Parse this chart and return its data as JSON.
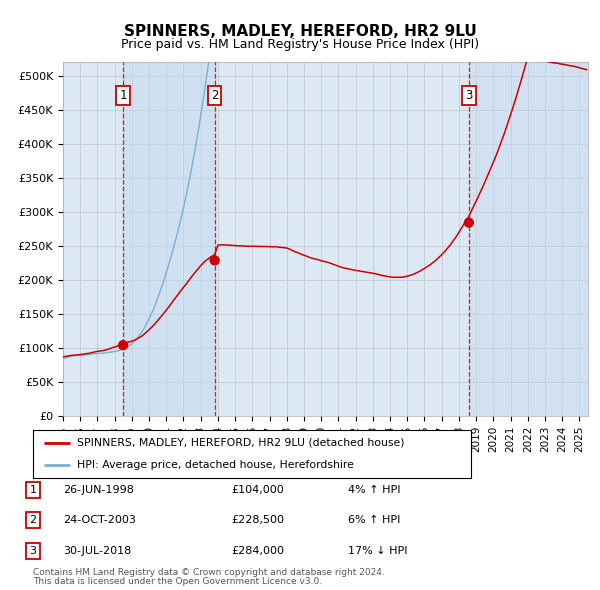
{
  "title": "SPINNERS, MADLEY, HEREFORD, HR2 9LU",
  "subtitle": "Price paid vs. HM Land Registry's House Price Index (HPI)",
  "title_fontsize": 11,
  "subtitle_fontsize": 9,
  "background_color": "#ffffff",
  "plot_bg_color": "#dce9f5",
  "legend_line1": "SPINNERS, MADLEY, HEREFORD, HR2 9LU (detached house)",
  "legend_line2": "HPI: Average price, detached house, Herefordshire",
  "transactions": [
    {
      "label": "1",
      "date_str": "26-JUN-1998",
      "date_x": 1998.49,
      "price": 104000,
      "pct": "4%",
      "dir": "↑"
    },
    {
      "label": "2",
      "date_str": "24-OCT-2003",
      "date_x": 2003.81,
      "price": 228500,
      "pct": "6%",
      "dir": "↑"
    },
    {
      "label": "3",
      "date_str": "30-JUL-2018",
      "date_x": 2018.58,
      "price": 284000,
      "pct": "17%",
      "dir": "↓"
    }
  ],
  "footer1": "Contains HM Land Registry data © Crown copyright and database right 2024.",
  "footer2": "This data is licensed under the Open Government Licence v3.0.",
  "ylim": [
    0,
    520000
  ],
  "xlim_start": 1995.0,
  "xlim_end": 2025.5,
  "yticks": [
    0,
    50000,
    100000,
    150000,
    200000,
    250000,
    300000,
    350000,
    400000,
    450000,
    500000
  ],
  "ytick_labels": [
    "£0",
    "£50K",
    "£100K",
    "£150K",
    "£200K",
    "£250K",
    "£300K",
    "£350K",
    "£400K",
    "£450K",
    "£500K"
  ],
  "red_line_color": "#cc0000",
  "blue_line_color": "#7ab0d4",
  "dot_color": "#cc0000",
  "vline_color": "#cc0000",
  "shade_color": "#c5d9ed",
  "grid_color": "#bbbbbb"
}
